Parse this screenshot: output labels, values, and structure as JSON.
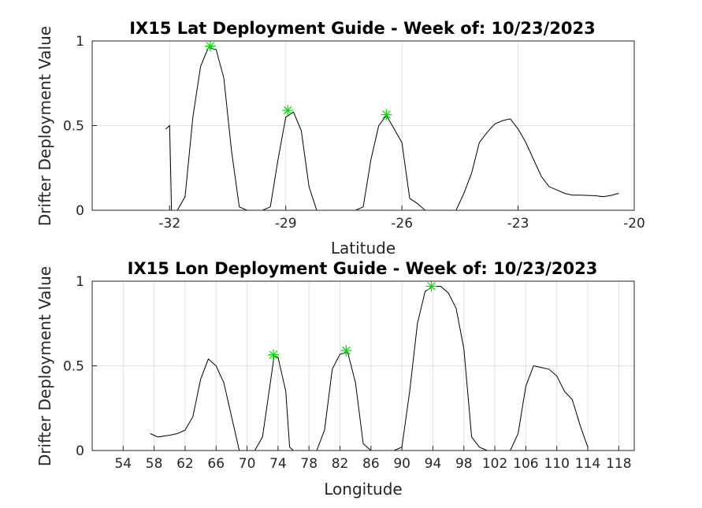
{
  "colors": {
    "line": "#000000",
    "peak": "#00dd00",
    "grid": "#e1e1e1",
    "axis": "#262626"
  },
  "chart_data": [
    {
      "type": "line",
      "title": "IX15 Lat Deployment Guide - Week of: 10/23/2023",
      "xlabel": "Latitude",
      "ylabel": "Drifter Deployment Value",
      "xlim": [
        -34,
        -20
      ],
      "ylim": [
        0,
        1
      ],
      "xticks": [
        -32,
        -29,
        -26,
        -23,
        -20
      ],
      "yticks": [
        0,
        0.5,
        1
      ],
      "ytick_labels": [
        "0",
        "0.5",
        "1"
      ],
      "grid": true,
      "series": [
        {
          "x": [
            -32.1,
            -32.0,
            -31.95
          ],
          "y": [
            0.48,
            0.5,
            0.0
          ]
        },
        {
          "x": [
            -31.8,
            -31.6,
            -31.4,
            -31.2,
            -31.0,
            -30.8,
            -30.6,
            -30.4,
            -30.2,
            -30.0,
            -29.8,
            -29.6,
            -29.4,
            -29.2,
            -29.0,
            -28.8,
            -28.6,
            -28.4,
            -28.2,
            -28.0,
            -27.8,
            -27.6,
            -27.4,
            -27.2,
            -27.0,
            -26.8,
            -26.6,
            -26.4,
            -26.2,
            -26.0,
            -25.8,
            -25.6,
            -25.4,
            -25.2,
            -25.0,
            -24.8,
            -24.6,
            -24.4,
            -24.2,
            -24.0,
            -23.8,
            -23.6,
            -23.4,
            -23.2,
            -23.0,
            -22.8,
            -22.6,
            -22.4,
            -22.2,
            -22.0,
            -21.8,
            -21.6,
            -21.4,
            -21.2,
            -21.0,
            -20.8,
            -20.6,
            -20.4
          ],
          "y": [
            0.0,
            0.08,
            0.55,
            0.85,
            0.96,
            0.95,
            0.78,
            0.35,
            0.02,
            0.0,
            0.0,
            0.0,
            0.02,
            0.3,
            0.55,
            0.58,
            0.47,
            0.14,
            0.0,
            0.0,
            0.0,
            0.0,
            0.0,
            0.0,
            0.02,
            0.3,
            0.5,
            0.56,
            0.48,
            0.4,
            0.07,
            0.04,
            0.0,
            0.0,
            0.0,
            0.0,
            0.0,
            0.1,
            0.22,
            0.4,
            0.46,
            0.51,
            0.53,
            0.54,
            0.48,
            0.4,
            0.3,
            0.2,
            0.14,
            0.12,
            0.1,
            0.09,
            0.09,
            0.088,
            0.086,
            0.08,
            0.088,
            0.1
          ]
        }
      ],
      "peaks": {
        "x": [
          -30.95,
          -28.95,
          -26.4
        ],
        "y": [
          0.97,
          0.59,
          0.565
        ]
      }
    },
    {
      "type": "line",
      "title": "IX15 Lon Deployment Guide - Week of: 10/23/2023",
      "xlabel": "Longitude",
      "ylabel": "Drifter Deployment Value",
      "xlim": [
        50,
        120
      ],
      "ylim": [
        0,
        1
      ],
      "xticks": [
        54,
        58,
        62,
        66,
        70,
        74,
        78,
        82,
        86,
        90,
        94,
        98,
        102,
        106,
        110,
        114,
        118
      ],
      "yticks": [
        0,
        0.5,
        1
      ],
      "ytick_labels": [
        "0",
        "0.5",
        "1"
      ],
      "grid": true,
      "series": [
        {
          "x": [
            57.5,
            58.5,
            60,
            61,
            62,
            63,
            64,
            65,
            66,
            67,
            68,
            69,
            70,
            71,
            72,
            73,
            73.5,
            74,
            75,
            75.5,
            76,
            77,
            78,
            79,
            80,
            81,
            82,
            83,
            84,
            85,
            86,
            87,
            88,
            89,
            90,
            91,
            92,
            93,
            94,
            95,
            96,
            97,
            98,
            99,
            100,
            101,
            102,
            103,
            104,
            105,
            106,
            107,
            108,
            109,
            110,
            111,
            112,
            113,
            114
          ],
          "y": [
            0.1,
            0.08,
            0.09,
            0.1,
            0.12,
            0.2,
            0.42,
            0.54,
            0.5,
            0.4,
            0.2,
            0.0,
            0.0,
            0.0,
            0.08,
            0.4,
            0.56,
            0.55,
            0.35,
            0.02,
            0.0,
            0.0,
            0.0,
            0.0,
            0.12,
            0.48,
            0.57,
            0.58,
            0.4,
            0.04,
            0.0,
            0.0,
            0.0,
            0.0,
            0.02,
            0.35,
            0.75,
            0.94,
            0.97,
            0.97,
            0.93,
            0.84,
            0.6,
            0.08,
            0.02,
            0.0,
            0.0,
            0.0,
            0.0,
            0.1,
            0.38,
            0.5,
            0.49,
            0.48,
            0.44,
            0.35,
            0.3,
            0.15,
            0.02
          ]
        }
      ],
      "peaks": {
        "x": [
          73.4,
          82.8,
          93.8
        ],
        "y": [
          0.565,
          0.59,
          0.97
        ]
      }
    }
  ]
}
